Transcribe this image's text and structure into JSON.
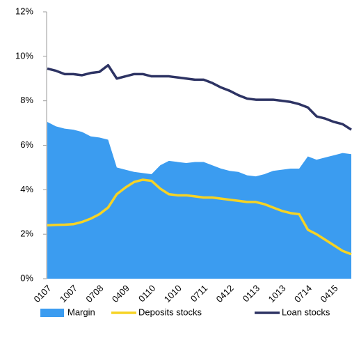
{
  "chart_data": {
    "type": "line",
    "categories": [
      "0107",
      null,
      null,
      "1007",
      null,
      null,
      "0708",
      null,
      null,
      "0409",
      null,
      null,
      "0110",
      null,
      null,
      "1010",
      null,
      null,
      "0711",
      null,
      null,
      "0412",
      null,
      null,
      "0113",
      null,
      null,
      "1013",
      null,
      null,
      "0714",
      null,
      null,
      "0415",
      null,
      null
    ],
    "series": [
      {
        "name": "Margin",
        "color": "#3b9cf0",
        "kind": "area",
        "values": [
          7.05,
          6.85,
          6.75,
          6.7,
          6.6,
          6.4,
          6.35,
          6.25,
          5.0,
          4.9,
          4.8,
          4.75,
          4.7,
          5.1,
          5.3,
          5.25,
          5.2,
          5.25,
          5.25,
          5.1,
          4.95,
          4.85,
          4.8,
          4.65,
          4.6,
          4.7,
          4.85,
          4.9,
          4.95,
          4.95,
          5.5,
          5.35,
          5.45,
          5.55,
          5.65,
          5.6
        ]
      },
      {
        "name": "Deposits stocks",
        "color": "#f6d324",
        "kind": "line",
        "values": [
          2.4,
          2.42,
          2.43,
          2.45,
          2.55,
          2.7,
          2.9,
          3.2,
          3.8,
          4.1,
          4.35,
          4.45,
          4.4,
          4.05,
          3.8,
          3.75,
          3.75,
          3.7,
          3.65,
          3.65,
          3.6,
          3.55,
          3.5,
          3.45,
          3.45,
          3.35,
          3.2,
          3.05,
          2.95,
          2.9,
          2.2,
          2.0,
          1.75,
          1.5,
          1.25,
          1.1
        ]
      },
      {
        "name": "Loan stocks",
        "color": "#2d3363",
        "kind": "line",
        "values": [
          9.45,
          9.35,
          9.2,
          9.2,
          9.15,
          9.25,
          9.3,
          9.6,
          9.0,
          9.1,
          9.2,
          9.2,
          9.1,
          9.1,
          9.1,
          9.05,
          9.0,
          8.95,
          8.95,
          8.8,
          8.6,
          8.45,
          8.25,
          8.1,
          8.05,
          8.05,
          8.05,
          8.0,
          7.95,
          7.85,
          7.7,
          7.3,
          7.2,
          7.05,
          6.95,
          6.7
        ]
      }
    ],
    "ylim": [
      0,
      12
    ],
    "yticks": [
      {
        "value": 0,
        "label": "0%"
      },
      {
        "value": 2,
        "label": "2%"
      },
      {
        "value": 4,
        "label": "4%"
      },
      {
        "value": 6,
        "label": "6%"
      },
      {
        "value": 8,
        "label": "8%"
      },
      {
        "value": 10,
        "label": "10%"
      },
      {
        "value": 12,
        "label": "12%"
      }
    ],
    "legend": "bottom"
  }
}
